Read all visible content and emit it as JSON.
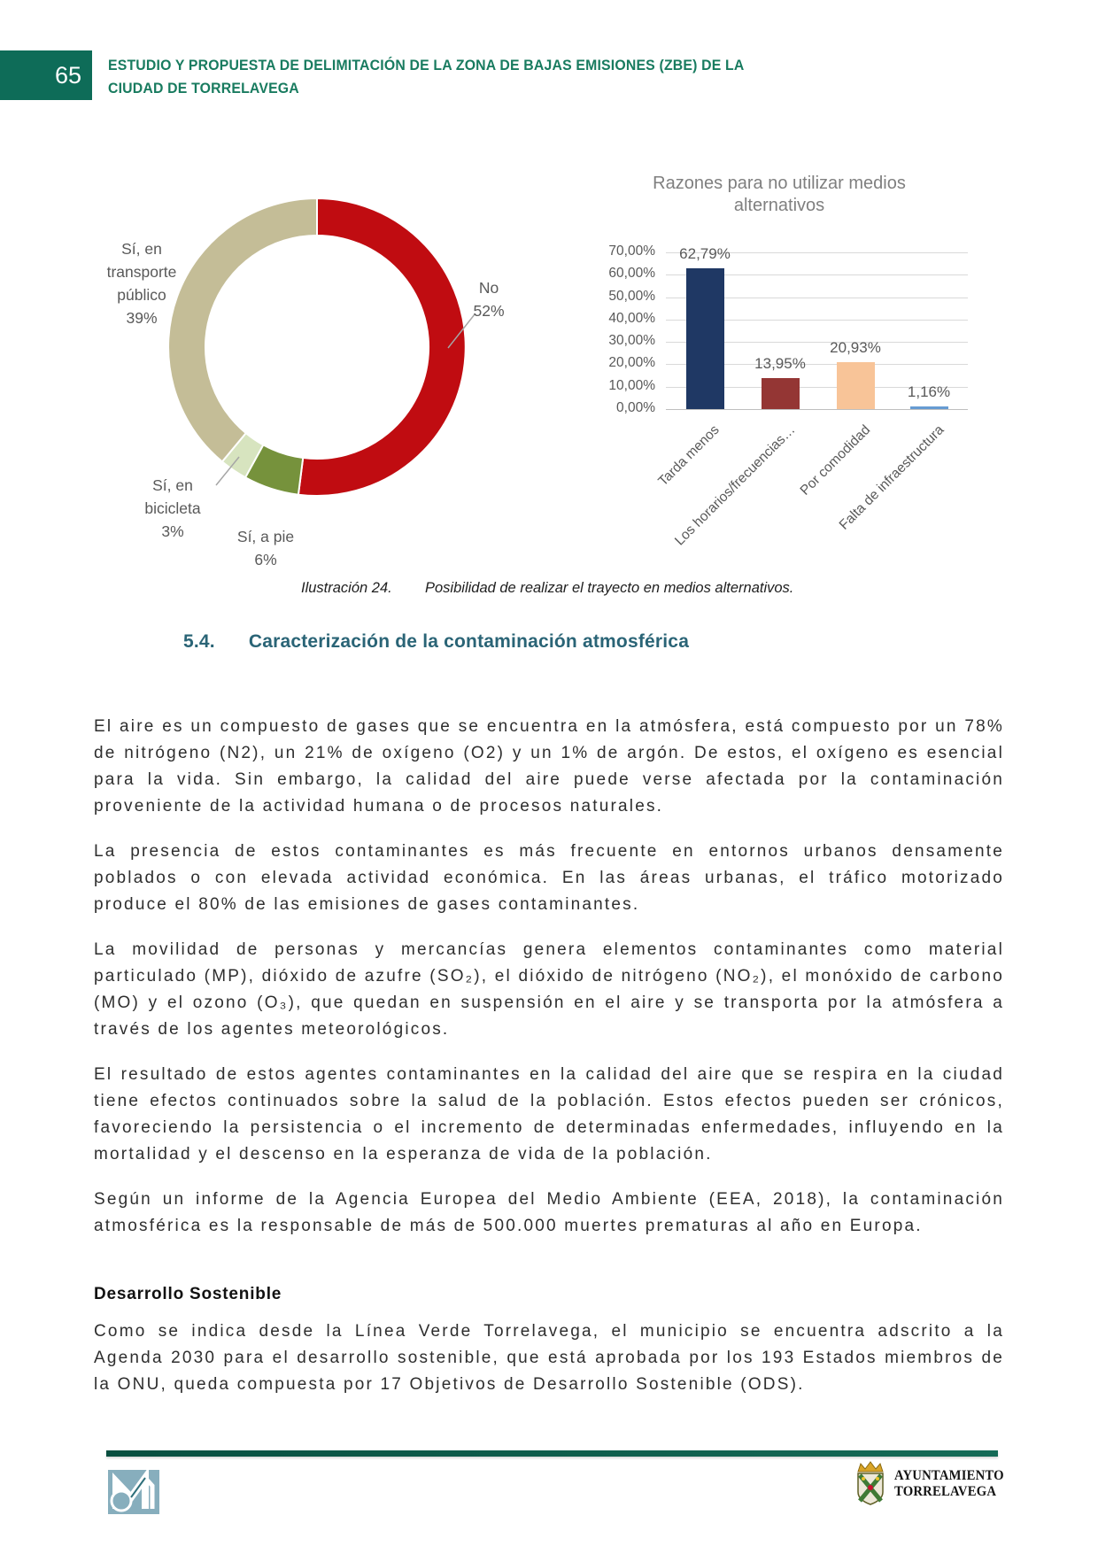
{
  "page": {
    "number": "65",
    "header_title": "ESTUDIO Y PROPUESTA DE DELIMITACIÓN DE LA ZONA DE BAJAS EMISIONES (ZBE) DE LA\nCIUDAD DE TORRELAVEGA"
  },
  "figure": {
    "donut_labels": {
      "transporte": "Sí, en\ntransporte\npúblico\n39%",
      "no": "No\n52%",
      "bicicleta": "Sí, en\nbicicleta\n3%",
      "a_pie": "Sí, a pie\n6%"
    },
    "caption_label": "Ilustración 24.",
    "caption_text": "Posibilidad de realizar el trayecto en medios alternativos."
  },
  "chart_data": [
    {
      "type": "pie",
      "donut": true,
      "labels": [
        "No",
        "Sí, a pie",
        "Sí, en bicicleta",
        "Sí, en transporte público"
      ],
      "values": [
        52,
        6,
        3,
        39
      ],
      "colors": [
        "#C00C11",
        "#76923C",
        "#D7E4BF",
        "#C4BD97"
      ],
      "start_angle_deg": 0,
      "direction": "clockwise"
    },
    {
      "type": "bar",
      "title": "Razones para no utilizar medios\nalternativos",
      "categories": [
        "Tarda menos",
        "Los horarios/frecuencias…",
        "Por comodidad",
        "Falta de infraestructura"
      ],
      "values": [
        62.79,
        13.95,
        20.93,
        1.16
      ],
      "value_labels": [
        "62,79%",
        "13,95%",
        "20,93%",
        "1,16%"
      ],
      "colors": [
        "#1F3864",
        "#943634",
        "#F8C498",
        "#669BD2"
      ],
      "ylim": [
        0,
        70
      ],
      "yticks": [
        "0,00%",
        "10,00%",
        "20,00%",
        "30,00%",
        "40,00%",
        "50,00%",
        "60,00%",
        "70,00%"
      ],
      "grid": true,
      "legend": "none"
    }
  ],
  "section": {
    "number": "5.4.",
    "title": "Caracterización de la contaminación atmosférica"
  },
  "paragraphs": {
    "p1": "El aire es un compuesto de gases que se encuentra en la atmósfera, está compuesto por un 78% de nitrógeno (N2), un 21% de oxígeno (O2) y un 1% de argón. De estos, el oxígeno es esencial para la vida. Sin embargo, la calidad del aire puede verse afectada por la contaminación proveniente de la actividad humana o de procesos naturales.",
    "p2": "La presencia de estos contaminantes es más frecuente en entornos urbanos densamente poblados o con elevada actividad económica. En las áreas urbanas, el tráfico motorizado produce el 80% de las emisiones de gases contaminantes.",
    "p3": "La movilidad de personas y mercancías genera elementos contaminantes como material particulado (MP), dióxido de azufre (SO₂), el dióxido de nitrógeno (NO₂), el monóxido de carbono (MO) y el ozono (O₃), que quedan en suspensión en el aire y se transporta por la atmósfera a través de los agentes meteorológicos.",
    "p4": "El resultado de estos agentes contaminantes en la calidad del aire que se respira en la ciudad tiene efectos continuados sobre la salud de la población. Estos efectos pueden ser crónicos, favoreciendo la persistencia o el incremento de determinadas enfermedades, influyendo en la mortalidad y el descenso en la esperanza de vida de la población.",
    "p5": "Según un informe de la Agencia Europea del Medio Ambiente (EEA, 2018), la contaminación atmosférica es la responsable de más de 500.000 muertes prematuras al año en Europa.",
    "subheading": "Desarrollo Sostenible",
    "p6": "Como se indica desde la Línea Verde Torrelavega, el municipio se encuentra adscrito a la Agenda 2030 para el desarrollo sostenible, que está aprobada por los 193 Estados miembros de la ONU, queda compuesta por 17 Objetivos de Desarrollo Sostenible (ODS)."
  },
  "footer": {
    "ayuntamiento": "AYUNTAMIENTO\nTORRELAVEGA"
  },
  "colors": {
    "header_green": "#187B5F",
    "page_box_green": "#0E6C58",
    "heading_teal": "#2A6476",
    "footer_rule_green": "#0A5847",
    "axis_text_gray": "#595959",
    "chart_title_gray": "#7F7F7F"
  }
}
